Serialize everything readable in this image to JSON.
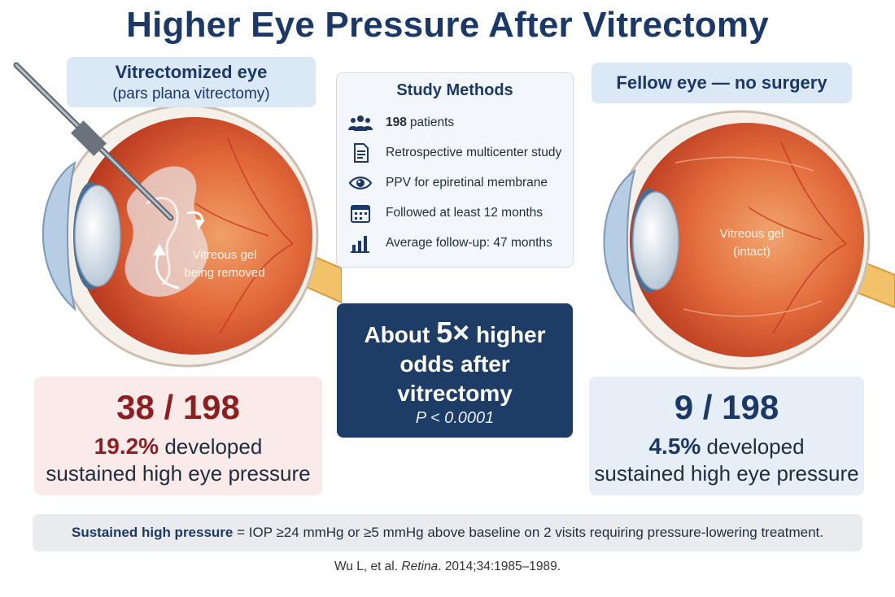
{
  "title": "Higher Eye Pressure After Vitrectomy",
  "left_eye": {
    "label_line1": "Vitrectomized eye",
    "label_line2": "(pars plana vitrectomy)",
    "annotation_line1": "Vitreous gel",
    "annotation_line2": "being removed"
  },
  "right_eye": {
    "label": "Fellow eye — no surgery",
    "annotation_line1": "Vitreous gel",
    "annotation_line2": "(intact)"
  },
  "methods": {
    "title": "Study Methods",
    "items": [
      {
        "icon": "people-icon",
        "bold": "198",
        "text": "patients"
      },
      {
        "icon": "document-icon",
        "bold": "",
        "text": "Retrospective multicenter study"
      },
      {
        "icon": "eye-icon",
        "bold": "",
        "text": "PPV for epiretinal membrane"
      },
      {
        "icon": "calendar-icon",
        "bold": "",
        "text": "Followed at least 12 months"
      },
      {
        "icon": "bar-chart-icon",
        "bold": "",
        "text": "Average follow-up: 47 months"
      }
    ]
  },
  "odds": {
    "line1_pre": "About",
    "line1_big": "5×",
    "line1_post": "higher",
    "line2": "odds after",
    "line3": "vitrectomy",
    "p_value": "P < 0.0001"
  },
  "result_left": {
    "count": "38 / 198",
    "percent": "19.2%",
    "percent_suffix": "developed",
    "description": "sustained high eye pressure"
  },
  "result_right": {
    "count": "9 / 198",
    "percent": "4.5%",
    "percent_suffix": "developed",
    "description": "sustained high eye pressure"
  },
  "definition": {
    "term": "Sustained high pressure",
    "text": "= IOP ≥24 mmHg or ≥5 mmHg above baseline on 2 visits requiring pressure-lowering treatment."
  },
  "citation": {
    "authors": "Wu L, et al.",
    "journal": "Retina",
    "details": "2014;34:1985–1989."
  },
  "colors": {
    "title": "#1b3866",
    "accent_red": "#8c1f1f",
    "navy_box": "#1d3c66",
    "light_blue": "#dbe8f6"
  }
}
